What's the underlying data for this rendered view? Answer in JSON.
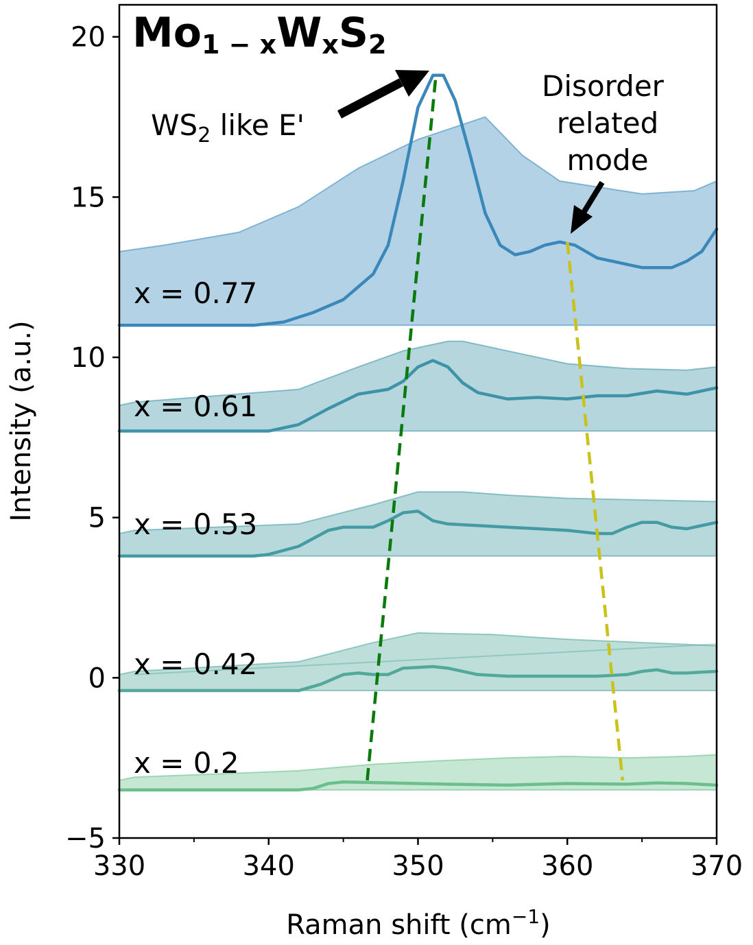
{
  "chart_data": {
    "type": "line",
    "title_parts": {
      "base1": "Mo",
      "sub1": "1 − x",
      "base2": "W",
      "sub2": "x",
      "base3": "S",
      "sub3": "2"
    },
    "xlabel_main": "Raman shift (cm",
    "xlabel_sup": "−1",
    "xlabel_close": ")",
    "ylabel": "Intensity (a.u.)",
    "xlim": [
      330,
      370
    ],
    "ylim": [
      -5,
      21
    ],
    "xticks": [
      330,
      340,
      350,
      360,
      370
    ],
    "xtick_labels": [
      "330",
      "340",
      "350",
      "360",
      "370"
    ],
    "yticks": [
      -5,
      0,
      5,
      10,
      15,
      20
    ],
    "ytick_labels": [
      "−5",
      "0",
      "5",
      "10",
      "15",
      "20"
    ],
    "grid": false,
    "series": [
      {
        "label": "x = 0.2",
        "color": "#6abf8b",
        "baseline": -3.5,
        "line_x": [
          330,
          342,
          343,
          344,
          345,
          348,
          352,
          356,
          360,
          364,
          366,
          368,
          370
        ],
        "line_y": [
          -3.5,
          -3.5,
          -3.45,
          -3.3,
          -3.25,
          -3.28,
          -3.32,
          -3.35,
          -3.3,
          -3.32,
          -3.28,
          -3.3,
          -3.35
        ],
        "env_x": [
          330,
          331,
          342,
          347,
          351,
          356,
          360,
          364,
          368,
          370
        ],
        "env_y": [
          -3.2,
          -3.1,
          -2.9,
          -2.7,
          -2.6,
          -2.5,
          -2.45,
          -2.5,
          -2.45,
          -2.4
        ]
      },
      {
        "label": "x = 0.42",
        "color": "#52a89a",
        "baseline": -0.4,
        "line_x": [
          330,
          342,
          343.5,
          345,
          346,
          347,
          348,
          349,
          351,
          352,
          354,
          356,
          358,
          360,
          362,
          364,
          365,
          366,
          367,
          368,
          370
        ],
        "line_y": [
          -0.4,
          -0.4,
          -0.2,
          0.1,
          0.15,
          0.1,
          0.1,
          0.3,
          0.35,
          0.3,
          0.1,
          0.05,
          0.05,
          0.05,
          0.05,
          0.1,
          0.2,
          0.25,
          0.15,
          0.15,
          0.2
        ],
        "env_x": [
          330,
          331,
          342,
          347,
          350,
          355,
          360,
          365,
          370
        ],
        "env_y": [
          0.1,
          0.2,
          0.5,
          1.1,
          1.4,
          1.35,
          1.2,
          1.1,
          1.0
        ],
        "env_extra_x": [
          331,
          370
        ],
        "env_extra_y": [
          0.1,
          1.05
        ]
      },
      {
        "label": "x = 0.53",
        "color": "#449ba4",
        "baseline": 3.8,
        "line_x": [
          330,
          339,
          340,
          342,
          344,
          345,
          347,
          348,
          349,
          350,
          351,
          352,
          354,
          356,
          358,
          360,
          362,
          363,
          364,
          365,
          366,
          367,
          368,
          369,
          370
        ],
        "line_y": [
          3.8,
          3.8,
          3.85,
          4.1,
          4.6,
          4.7,
          4.7,
          4.9,
          5.15,
          5.2,
          4.9,
          4.8,
          4.75,
          4.7,
          4.65,
          4.6,
          4.5,
          4.5,
          4.7,
          4.85,
          4.85,
          4.7,
          4.65,
          4.75,
          4.85
        ],
        "env_x": [
          330,
          331,
          342,
          347,
          350,
          353,
          356,
          360,
          365,
          370
        ],
        "env_y": [
          4.5,
          4.6,
          4.8,
          5.4,
          5.8,
          5.8,
          5.7,
          5.6,
          5.55,
          5.5
        ]
      },
      {
        "label": "x = 0.61",
        "color": "#3f93a9",
        "baseline": 7.7,
        "line_x": [
          330,
          340,
          342,
          344,
          346,
          348,
          349,
          350,
          351,
          352,
          353,
          354,
          356,
          358,
          360,
          362,
          364,
          366,
          368,
          370
        ],
        "line_y": [
          7.7,
          7.7,
          7.9,
          8.4,
          8.85,
          9.0,
          9.25,
          9.7,
          9.9,
          9.7,
          9.2,
          8.9,
          8.7,
          8.75,
          8.7,
          8.8,
          8.8,
          8.95,
          8.85,
          9.05
        ],
        "env_x": [
          330,
          331,
          342,
          346,
          349,
          352,
          353,
          356,
          360,
          364,
          368,
          370
        ],
        "env_y": [
          8.5,
          8.6,
          9.0,
          9.7,
          10.2,
          10.5,
          10.5,
          10.2,
          9.8,
          9.65,
          9.6,
          9.7
        ]
      },
      {
        "label": "x = 0.77",
        "color": "#3a88ba",
        "baseline": 11.0,
        "line_x": [
          330,
          339,
          341,
          343,
          345,
          346,
          347,
          348,
          349,
          350,
          351,
          351.7,
          352.5,
          353.5,
          354.5,
          355.5,
          356.5,
          357.5,
          358.5,
          359.5,
          360.5,
          362,
          364,
          365,
          367,
          368,
          369,
          370
        ],
        "line_y": [
          11.0,
          11.0,
          11.1,
          11.4,
          11.8,
          12.2,
          12.6,
          13.5,
          15.5,
          17.8,
          18.8,
          18.8,
          18.0,
          16.3,
          14.5,
          13.5,
          13.2,
          13.3,
          13.5,
          13.6,
          13.5,
          13.1,
          12.9,
          12.8,
          12.8,
          13.0,
          13.3,
          14.0
        ],
        "env_x": [
          330,
          333,
          338,
          342,
          346,
          350,
          354.5,
          357,
          359.5,
          365,
          368.5,
          370
        ],
        "env_y": [
          13.3,
          13.5,
          13.9,
          14.7,
          15.9,
          16.8,
          17.5,
          16.3,
          15.5,
          15.1,
          15.2,
          15.5
        ]
      }
    ],
    "guides": [
      {
        "name": "WS2-like-E-prime-trend",
        "color": "#0a7a0a",
        "x": [
          346.6,
          351.2
        ],
        "y": [
          -3.2,
          18.8
        ]
      },
      {
        "name": "disorder-mode-trend",
        "color": "#c8c21a",
        "x": [
          360.0,
          363.7
        ],
        "y": [
          13.6,
          -3.2
        ]
      }
    ],
    "annotations": {
      "ws2_label_main": "WS",
      "ws2_label_sub": "2",
      "ws2_label_rest": " like E'",
      "disorder_line1": "Disorder",
      "disorder_line2": "related",
      "disorder_line3": "mode"
    }
  }
}
